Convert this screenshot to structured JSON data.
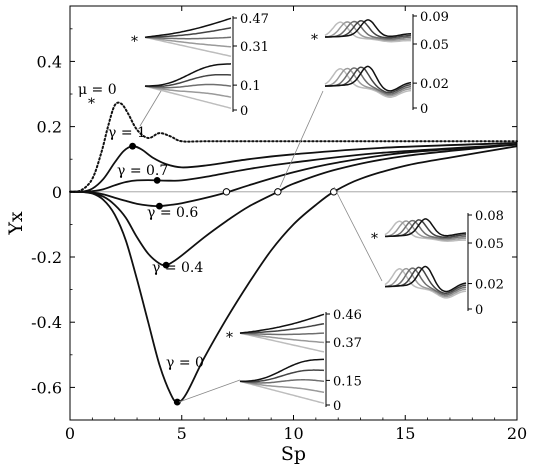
{
  "chart_data": {
    "type": "line",
    "xlabel": "Sp",
    "ylabel": "Υx",
    "xlim": [
      0,
      20
    ],
    "ylim": [
      -0.7,
      0.57
    ],
    "xticks": [
      0,
      5,
      10,
      15,
      20
    ],
    "yticks": [
      -0.6,
      -0.4,
      -0.2,
      0,
      0.2,
      0.4
    ],
    "xtick_labels": [
      "0",
      "5",
      "10",
      "15",
      "20"
    ],
    "ytick_labels": [
      "-0.6",
      "-0.4",
      "-0.2",
      "0",
      "0.2",
      "0.4"
    ],
    "grid": false,
    "zero_line": true,
    "series": [
      {
        "name": "μ = 0",
        "style": "dotted",
        "x": [
          0,
          0.5,
          1.0,
          1.4,
          1.7,
          2.0,
          2.3,
          2.6,
          3.0,
          3.5,
          4.0,
          4.5,
          5.0,
          6,
          8,
          12,
          20
        ],
        "y": [
          0,
          0.005,
          0.04,
          0.12,
          0.2,
          0.265,
          0.27,
          0.24,
          0.19,
          0.165,
          0.18,
          0.17,
          0.155,
          0.155,
          0.155,
          0.155,
          0.155
        ]
      },
      {
        "name": "γ = 1",
        "style": "solid",
        "x": [
          0,
          0.5,
          1.0,
          1.5,
          2.0,
          2.4,
          2.8,
          3.2,
          3.7,
          4.3,
          5.0,
          6,
          8,
          10,
          14,
          20
        ],
        "y": [
          0,
          0,
          0.01,
          0.04,
          0.09,
          0.125,
          0.14,
          0.13,
          0.105,
          0.085,
          0.075,
          0.08,
          0.1,
          0.115,
          0.135,
          0.15
        ]
      },
      {
        "name": "γ = 0.7",
        "style": "solid",
        "x": [
          0,
          0.5,
          1.0,
          1.5,
          2.0,
          2.5,
          3.0,
          3.5,
          3.9,
          4.5,
          5.0,
          6,
          8,
          10,
          14,
          20
        ],
        "y": [
          0,
          0,
          0.002,
          0.008,
          0.02,
          0.03,
          0.035,
          0.036,
          0.035,
          0.034,
          0.035,
          0.045,
          0.07,
          0.09,
          0.12,
          0.145
        ]
      },
      {
        "name": "γ = 0.6",
        "style": "solid",
        "x": [
          0,
          0.5,
          1.0,
          1.5,
          2.0,
          2.5,
          3.0,
          3.5,
          4.0,
          4.5,
          5.0,
          6,
          7,
          8,
          10,
          12,
          15,
          20
        ],
        "y": [
          0,
          0,
          -0.002,
          -0.008,
          -0.018,
          -0.028,
          -0.037,
          -0.042,
          -0.044,
          -0.04,
          -0.035,
          -0.02,
          -0.002,
          0.02,
          0.06,
          0.09,
          0.12,
          0.145
        ]
      },
      {
        "name": "γ = 0.4",
        "style": "solid",
        "x": [
          0,
          0.5,
          1.0,
          1.5,
          2.0,
          2.5,
          3.0,
          3.5,
          4.0,
          4.3,
          4.6,
          5.0,
          6,
          7,
          8,
          9.3,
          10,
          12,
          15,
          20
        ],
        "y": [
          0,
          0,
          -0.005,
          -0.015,
          -0.04,
          -0.08,
          -0.14,
          -0.19,
          -0.22,
          -0.225,
          -0.215,
          -0.195,
          -0.14,
          -0.09,
          -0.045,
          0,
          0.025,
          0.07,
          0.11,
          0.145
        ]
      },
      {
        "name": "γ = 0",
        "style": "solid",
        "x": [
          0,
          0.5,
          1.0,
          1.5,
          2.0,
          2.5,
          3.0,
          3.5,
          4.0,
          4.5,
          4.8,
          5.2,
          6,
          7,
          8,
          9,
          10,
          11,
          11.8,
          13,
          15,
          17,
          20
        ],
        "y": [
          0,
          0,
          -0.005,
          -0.025,
          -0.07,
          -0.15,
          -0.27,
          -0.4,
          -0.53,
          -0.62,
          -0.645,
          -0.62,
          -0.51,
          -0.39,
          -0.28,
          -0.18,
          -0.1,
          -0.04,
          0,
          0.04,
          0.08,
          0.105,
          0.14
        ]
      }
    ],
    "markers": [
      {
        "x": 2.8,
        "y": 0.14,
        "fill": "filled"
      },
      {
        "x": 3.9,
        "y": 0.035,
        "fill": "filled"
      },
      {
        "x": 4.0,
        "y": -0.044,
        "fill": "filled"
      },
      {
        "x": 4.3,
        "y": -0.225,
        "fill": "filled"
      },
      {
        "x": 4.8,
        "y": -0.645,
        "fill": "filled"
      },
      {
        "x": 7.0,
        "y": 0,
        "fill": "open"
      },
      {
        "x": 9.3,
        "y": 0,
        "fill": "open"
      },
      {
        "x": 11.8,
        "y": 0,
        "fill": "open"
      }
    ],
    "curve_labels": [
      {
        "text": "μ = 0",
        "series": "μ = 0"
      },
      {
        "text": "γ = 1",
        "series": "γ = 1"
      },
      {
        "text": "γ = 0.7",
        "series": "γ = 0.7"
      },
      {
        "text": "γ = 0.6",
        "series": "γ = 0.6"
      },
      {
        "text": "γ = 0.4",
        "series": "γ = 0.4"
      },
      {
        "text": "γ = 0",
        "series": "γ = 0"
      }
    ],
    "insets": [
      {
        "id": "inset-top-left",
        "panels": [
          {
            "ticks": [
              "0.47",
              "0.31"
            ],
            "star": true
          },
          {
            "ticks": [
              "0.1",
              "0"
            ],
            "star": false
          }
        ]
      },
      {
        "id": "inset-top-right",
        "panels": [
          {
            "ticks": [
              "0.09",
              "0.05"
            ],
            "star": true
          },
          {
            "ticks": [
              "0.02",
              "0"
            ],
            "star": false
          }
        ]
      },
      {
        "id": "inset-mid-right",
        "panels": [
          {
            "ticks": [
              "0.08",
              "0.05"
            ],
            "star": true
          },
          {
            "ticks": [
              "0.02",
              "0"
            ],
            "star": false
          }
        ]
      },
      {
        "id": "inset-bottom",
        "panels": [
          {
            "ticks": [
              "0.46",
              "0.37"
            ],
            "star": true
          },
          {
            "ticks": [
              "0.15",
              "0"
            ],
            "star": false
          }
        ]
      }
    ],
    "star_symbol": "*"
  }
}
